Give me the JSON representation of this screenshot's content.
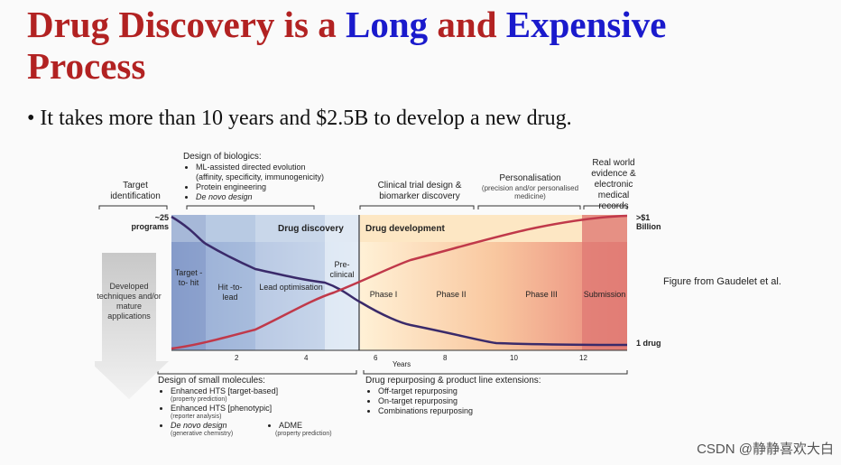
{
  "title": {
    "part1": "Drug Discovery is a ",
    "part2": "Long",
    "part3": " and ",
    "part4": "Expensive",
    "part5": "Process"
  },
  "bullet": "• It takes more than 10 years and $2.5B to develop a new drug.",
  "figure": {
    "top_labels": {
      "target_identification": "Target identification",
      "biologics_title": "Design of biologics:",
      "biologics_items": [
        "ML-assisted directed evolution",
        "Protein engineering",
        "De novo design"
      ],
      "biologics_note": "(affinity, specificity, immunogenicity)",
      "clinical": "Clinical trial design & biomarker discovery",
      "personalisation": "Personalisation",
      "personalisation_note": "(precision and/or personalised medicine)",
      "real_world": "Real world evidence & electronic medical records"
    },
    "left_count": "~25 programs",
    "right_top": ">$1 Billion",
    "right_bottom": "1 drug",
    "band_discovery": "Drug discovery",
    "band_development": "Drug development",
    "stages": [
      "Target -to- hit",
      "Hit -to- lead",
      "Lead optimisation",
      "Pre- clinical",
      "Phase I",
      "Phase II",
      "Phase III",
      "Submission"
    ],
    "arrow_text": "Developed techniques and/or mature applications",
    "x_ticks": [
      "2",
      "4",
      "6",
      "8",
      "10",
      "12"
    ],
    "x_label": "Years",
    "small_molecules_title": "Design of small molecules:",
    "small_molecules": [
      {
        "label": "Enhanced HTS [target-based]",
        "note": "(property prediction)"
      },
      {
        "label": "Enhanced HTS [phenotypic]",
        "note": "(reporter analysis)"
      },
      {
        "label": "De novo design",
        "note": "(generative chemistry)"
      }
    ],
    "adme": "ADME",
    "adme_note": "(property prediction)",
    "repurposing_title": "Drug repurposing & product line extensions:",
    "repurposing_items": [
      "Off-target repurposing",
      "On-target repurposing",
      "Combinations repurposing"
    ]
  },
  "credit": "Figure from Gaudelet et al.",
  "watermark": "CSDN @静静喜欢大白",
  "colors": {
    "title_red": "#b22222",
    "title_blue": "#1a1acc",
    "cost_curve": "#c0394a",
    "programs_curve": "#3a2a6a"
  }
}
